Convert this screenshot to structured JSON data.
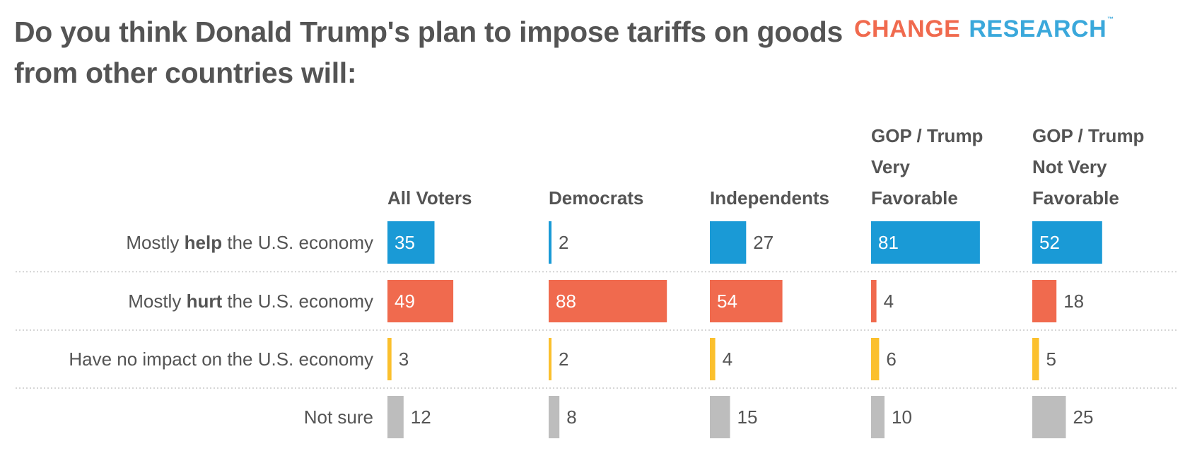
{
  "title": "Do you think Donald Trump's plan to impose tariffs on goods from other countries will:",
  "logo": {
    "word1": "CHANGE",
    "word2": "RESEARCH",
    "trademark": "™"
  },
  "colors": {
    "help": "#1a9ad6",
    "hurt": "#f06a4e",
    "no_impact": "#fbc02d",
    "not_sure": "#bdbdbd",
    "text": "#545454"
  },
  "chart_data": {
    "type": "bar",
    "orientation": "horizontal",
    "layout": "small-multiples",
    "title": "Do you think Donald Trump's plan to impose tariffs on goods from other countries will:",
    "xlim": [
      0,
      100
    ],
    "groups": [
      {
        "name": "All Voters",
        "header_lines": [
          "All Voters"
        ]
      },
      {
        "name": "Democrats",
        "header_lines": [
          "Democrats"
        ]
      },
      {
        "name": "Independents",
        "header_lines": [
          "Independents"
        ]
      },
      {
        "name": "GOP / Trump Very Favorable",
        "header_lines": [
          "GOP / Trump",
          "Very",
          "Favorable"
        ]
      },
      {
        "name": "GOP / Trump Not Very Favorable",
        "header_lines": [
          "GOP / Trump",
          "Not Very",
          "Favorable"
        ]
      }
    ],
    "categories": [
      {
        "pre": "Mostly ",
        "bold": "help",
        "post": " the U.S. economy",
        "color_key": "help"
      },
      {
        "pre": "Mostly ",
        "bold": "hurt",
        "post": " the U.S. economy",
        "color_key": "hurt"
      },
      {
        "pre": "Have no impact on the U.S. economy",
        "bold": "",
        "post": "",
        "color_key": "no_impact"
      },
      {
        "pre": "Not sure",
        "bold": "",
        "post": "",
        "color_key": "not_sure"
      }
    ],
    "values": [
      [
        35,
        2,
        27,
        81,
        52
      ],
      [
        49,
        88,
        54,
        4,
        18
      ],
      [
        3,
        2,
        4,
        6,
        5
      ],
      [
        12,
        8,
        15,
        10,
        25
      ]
    ]
  }
}
